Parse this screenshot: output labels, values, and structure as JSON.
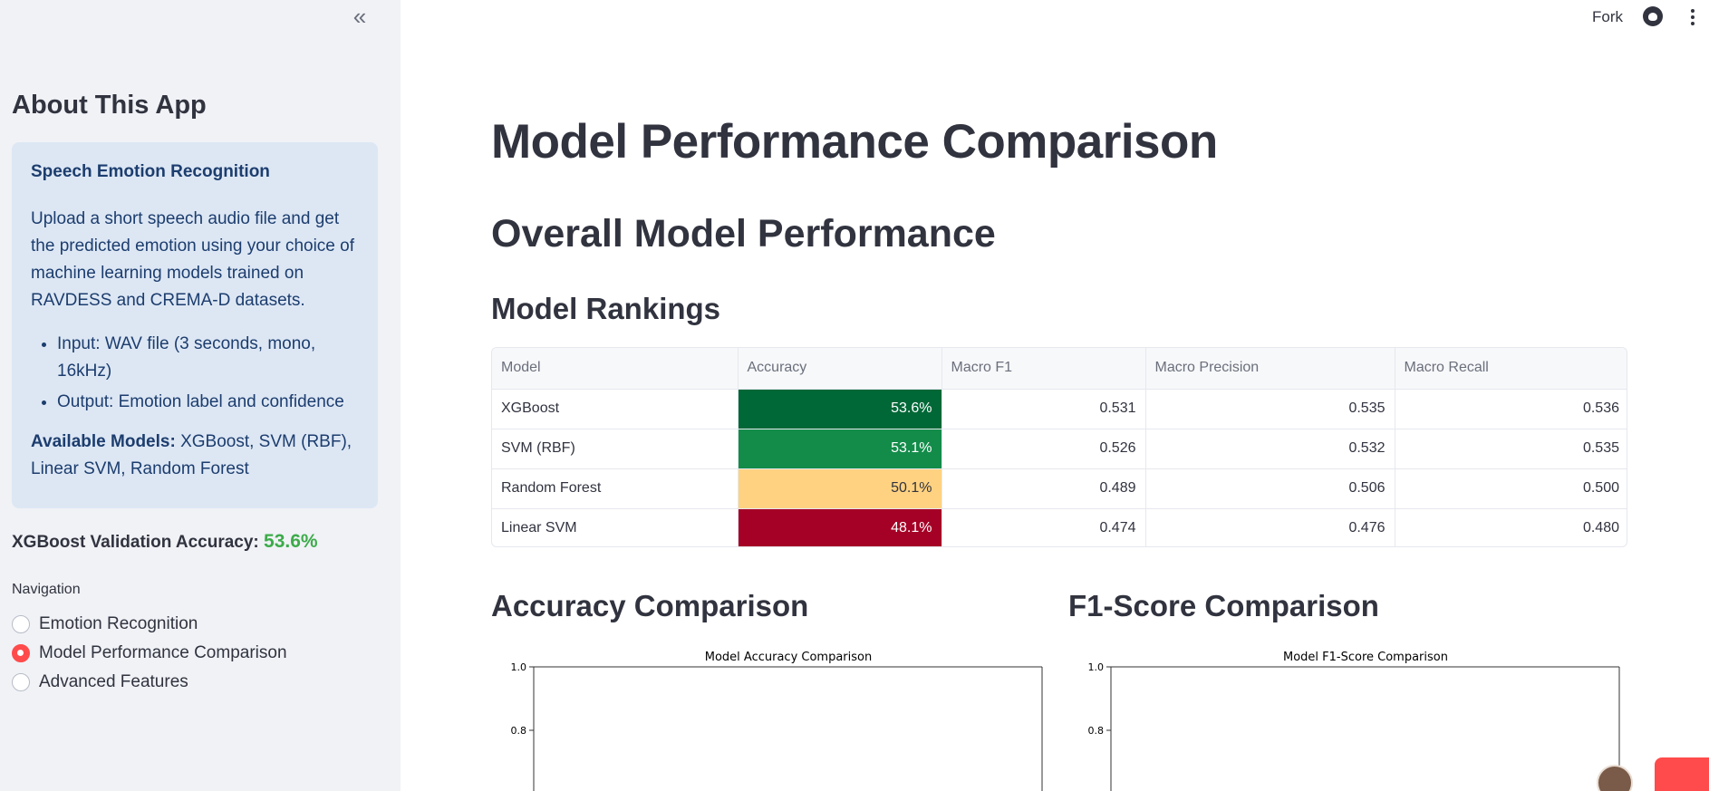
{
  "sidebar": {
    "heading": "About This App",
    "info": {
      "title": "Speech Emotion Recognition",
      "description": "Upload a short speech audio file and get the predicted emotion using your choice of machine learning models trained on RAVDESS and CREMA-D datasets.",
      "bullets": [
        "Input: WAV file (3 seconds, mono, 16kHz)",
        "Output: Emotion label and confidence"
      ],
      "models_label": "Available Models:",
      "models_value": " XGBoost, SVM (RBF), Linear SVM, Random Forest"
    },
    "accuracy_label": "XGBoost Validation Accuracy: ",
    "accuracy_value": "53.6%",
    "nav_label": "Navigation",
    "nav_items": [
      {
        "label": "Emotion Recognition",
        "selected": false
      },
      {
        "label": "Model Performance Comparison",
        "selected": true
      },
      {
        "label": "Advanced Features",
        "selected": false
      }
    ],
    "collapse_icon": "double-chevron-left-icon"
  },
  "topbar": {
    "fork_label": "Fork",
    "github_icon": "github-icon",
    "menu_icon": "kebab-menu-icon"
  },
  "main": {
    "title": "Model Performance Comparison",
    "section_title": "Overall Model Performance",
    "rankings_title": "Model Rankings",
    "table": {
      "headers": [
        "Model",
        "Accuracy",
        "Macro F1",
        "Macro Precision",
        "Macro Recall"
      ],
      "rows": [
        {
          "model": "XGBoost",
          "accuracy": "53.6%",
          "f1": "0.531",
          "precision": "0.535",
          "recall": "0.536",
          "acc_color": "#006837",
          "acc_text_color": "#ffffff"
        },
        {
          "model": "SVM (RBF)",
          "accuracy": "53.1%",
          "f1": "0.526",
          "precision": "0.532",
          "recall": "0.535",
          "acc_color": "#138c4a",
          "acc_text_color": "#ffffff"
        },
        {
          "model": "Random Forest",
          "accuracy": "50.1%",
          "f1": "0.489",
          "precision": "0.506",
          "recall": "0.500",
          "acc_color": "#fed281",
          "acc_text_color": "#31333f"
        },
        {
          "model": "Linear SVM",
          "accuracy": "48.1%",
          "f1": "0.474",
          "precision": "0.476",
          "recall": "0.480",
          "acc_color": "#a50026",
          "acc_text_color": "#ffffff"
        }
      ]
    },
    "accuracy_section_title": "Accuracy Comparison",
    "f1_section_title": "F1-Score Comparison"
  },
  "chart_data": [
    {
      "type": "bar",
      "title": "Model Accuracy Comparison",
      "categories": [],
      "values": [],
      "xlabel": "",
      "ylabel": "",
      "ylim": [
        0.0,
        1.0
      ],
      "yticks": [
        "1.0",
        "0.8"
      ]
    },
    {
      "type": "bar",
      "title": "Model F1-Score Comparison",
      "categories": [],
      "values": [],
      "xlabel": "",
      "ylabel": "",
      "ylim": [
        0.0,
        1.0
      ],
      "yticks": [
        "1.0",
        "0.8"
      ]
    }
  ],
  "colors": {
    "accent": "#ff4b4b",
    "sidebar_bg": "#f0f2f6",
    "info_bg": "#dde7f4",
    "info_text": "#1c3d6e",
    "accuracy_value": "#3dab4a"
  }
}
